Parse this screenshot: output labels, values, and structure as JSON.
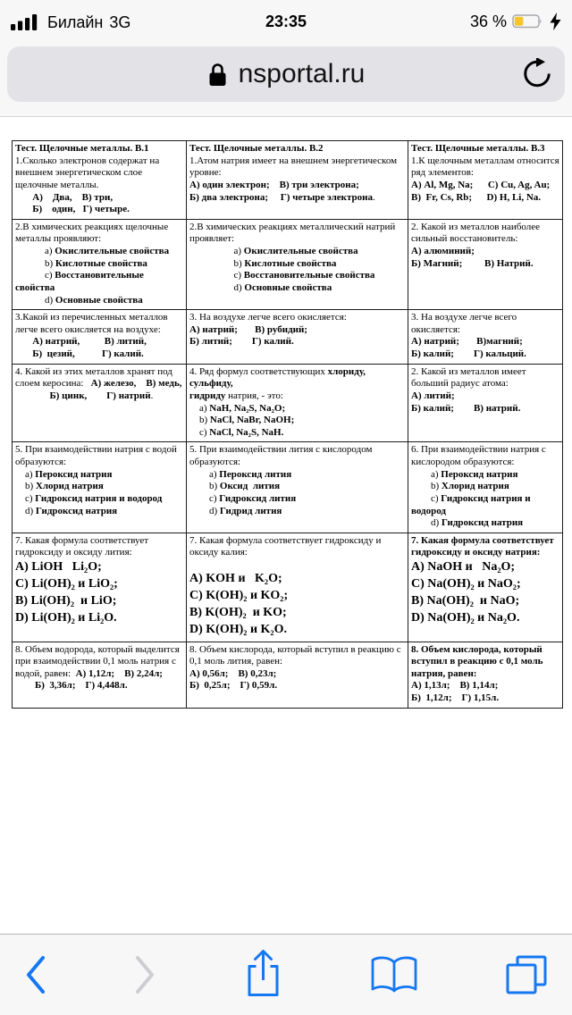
{
  "status_bar": {
    "carrier": "Билайн",
    "network": "3G",
    "time": "23:35",
    "battery_percent": "36 %",
    "charging": true
  },
  "address_bar": {
    "url": "nsportal.ru"
  },
  "toolbar": {
    "buttons": [
      "back",
      "forward",
      "share",
      "bookmarks",
      "tabs"
    ]
  },
  "colors": {
    "accent": "#1577f2",
    "disabled": "#cdcdd1",
    "battery": "#f6c52e",
    "chrome_bg": "#f7f7f8",
    "pill_bg": "#e3e2e7",
    "border": "#b6b6ba"
  },
  "table": {
    "rows": [
      [
        {
          "lines": [
            {
              "segs": [
                {
                  "t": "Тест. Щелочные металлы. В.1",
                  "b": true
                }
              ]
            },
            {
              "segs": [
                {
                  "t": "1.Сколько электронов содержат на внешнем энергетическом слое  щелочные металлы."
                }
              ]
            },
            {
              "segs": [
                {
                  "t": "       А)    Два,    В) три,",
                  "b": true
                }
              ]
            },
            {
              "segs": [
                {
                  "t": "       Б)    один,   Г) четыре.",
                  "b": true
                }
              ]
            }
          ]
        },
        {
          "lines": [
            {
              "segs": [
                {
                  "t": "Тест. Щелочные металлы. В.2",
                  "b": true
                }
              ]
            },
            {
              "segs": [
                {
                  "t": "1.Атом натрия имеет на внешнем энергетическом уровне:"
                }
              ]
            },
            {
              "segs": [
                {
                  "t": "А) один электрон;    В) три электрона;",
                  "b": true
                }
              ]
            },
            {
              "segs": [
                {
                  "t": "Б) два электрона;     Г) четыре электрона",
                  "b": true
                },
                {
                  "t": "."
                }
              ]
            }
          ]
        },
        {
          "lines": [
            {
              "segs": [
                {
                  "t": "Тест. Щелочные металлы. В.3",
                  "b": true
                }
              ]
            },
            {
              "segs": [
                {
                  "t": "1.К щелочным металлам относится ряд элементов:"
                }
              ]
            },
            {
              "segs": [
                {
                  "t": "А) Al, Mg, Na;      С) Cu, Ag, Au;",
                  "b": true
                }
              ]
            },
            {
              "segs": [
                {
                  "t": "В)  Fr, Cs, Rb;      D) H, Li, Na.",
                  "b": true
                }
              ]
            }
          ]
        }
      ],
      [
        {
          "lines": [
            {
              "segs": [
                {
                  "t": "2.В химических реакциях щелочные металлы проявляют:"
                }
              ]
            },
            {
              "segs": [
                {
                  "t": "            a) "
                },
                {
                  "t": "Окислительные свойства",
                  "b": true
                }
              ]
            },
            {
              "segs": [
                {
                  "t": "            b) "
                },
                {
                  "t": "Кислотные свойства",
                  "b": true
                }
              ]
            },
            {
              "segs": [
                {
                  "t": "            c) "
                },
                {
                  "t": "Восстановительные свойства",
                  "b": true
                }
              ]
            },
            {
              "segs": [
                {
                  "t": "            d) "
                },
                {
                  "t": "Основные свойства",
                  "b": true
                }
              ]
            }
          ]
        },
        {
          "lines": [
            {
              "segs": [
                {
                  "t": "2.В химических реакциях металлический натрий проявляет:"
                }
              ]
            },
            {
              "segs": [
                {
                  "t": "                  a) "
                },
                {
                  "t": "Окислительные свойства",
                  "b": true
                }
              ]
            },
            {
              "segs": [
                {
                  "t": "                  b) "
                },
                {
                  "t": "Кислотные свойства",
                  "b": true
                }
              ]
            },
            {
              "segs": [
                {
                  "t": "                  c) "
                },
                {
                  "t": "Восстановительные свойства",
                  "b": true
                }
              ]
            },
            {
              "segs": [
                {
                  "t": "                  d) "
                },
                {
                  "t": "Основные свойства",
                  "b": true
                }
              ]
            }
          ]
        },
        {
          "lines": [
            {
              "segs": [
                {
                  "t": "2. Какой из металлов наиболее сильный восстановитель:"
                }
              ]
            },
            {
              "segs": [
                {
                  "t": "А) алюминий;",
                  "b": true
                }
              ]
            },
            {
              "segs": [
                {
                  "t": "Б) Магний;         В) Натрий.",
                  "b": true
                }
              ]
            }
          ]
        }
      ],
      [
        {
          "lines": [
            {
              "segs": [
                {
                  "t": "3.Какой из перечисленных металлов легче всего окисляется на воздухе:"
                }
              ]
            },
            {
              "segs": [
                {
                  "t": "       А) натрий,          В) литий,",
                  "b": true
                }
              ]
            },
            {
              "segs": [
                {
                  "t": "       Б)  цезий,           Г) калий.",
                  "b": true
                }
              ]
            }
          ]
        },
        {
          "lines": [
            {
              "segs": [
                {
                  "t": "3. На воздухе легче всего окисляется:"
                }
              ]
            },
            {
              "segs": [
                {
                  "t": "А) натрий;       В) рубидий;",
                  "b": true
                }
              ]
            },
            {
              "segs": [
                {
                  "t": "Б) литий;        Г) калий.",
                  "b": true
                }
              ]
            }
          ]
        },
        {
          "lines": [
            {
              "segs": [
                {
                  "t": "3. На воздухе легче всего окисляется:"
                }
              ]
            },
            {
              "segs": [
                {
                  "t": "А) натрий;       В)магний;",
                  "b": true
                }
              ]
            },
            {
              "segs": [
                {
                  "t": "Б) калий;        Г) кальций.",
                  "b": true
                }
              ]
            }
          ]
        }
      ],
      [
        {
          "lines": [
            {
              "segs": [
                {
                  "t": "4. Какой из этих металлов хранят под слоем керосина:   "
                },
                {
                  "t": "А) железо,    В) медь,",
                  "b": true
                }
              ]
            },
            {
              "segs": [
                {
                  "t": "              "
                },
                {
                  "t": "Б) цинк,        Г) натрий",
                  "b": true
                },
                {
                  "t": "."
                }
              ]
            }
          ]
        },
        {
          "lines": [
            {
              "segs": [
                {
                  "t": "4. Ряд формул соответствующих "
                },
                {
                  "t": "хлориду, сульфиду,",
                  "b": true
                }
              ]
            },
            {
              "segs": [
                {
                  "t": "гидриду",
                  "b": true
                },
                {
                  "t": " натрия, - это:"
                }
              ]
            },
            {
              "segs": [
                {
                  "t": "    a) "
                },
                {
                  "t": "NaH, Na₂S, Na₂O;",
                  "b": true
                }
              ]
            },
            {
              "segs": [
                {
                  "t": "    b) "
                },
                {
                  "t": "NaCl, NaBr, NaOH;",
                  "b": true
                }
              ]
            },
            {
              "segs": [
                {
                  "t": "    c) "
                },
                {
                  "t": "NaCl, Na₂S, NaH.",
                  "b": true
                }
              ]
            }
          ]
        },
        {
          "lines": [
            {
              "segs": [
                {
                  "t": "2. Какой из металлов имеет больший радиус атома:"
                }
              ]
            },
            {
              "segs": [
                {
                  "t": "А) литий;",
                  "b": true
                }
              ]
            },
            {
              "segs": [
                {
                  "t": "Б) калий;        В) натрий.",
                  "b": true
                }
              ]
            }
          ]
        }
      ],
      [
        {
          "lines": [
            {
              "segs": [
                {
                  "t": "5. При взаимодействии натрия с водой образуются:"
                }
              ]
            },
            {
              "segs": [
                {
                  "t": "    a) "
                },
                {
                  "t": "Пероксид натрия",
                  "b": true
                }
              ]
            },
            {
              "segs": [
                {
                  "t": "    b) "
                },
                {
                  "t": "Хлорид натрия",
                  "b": true
                }
              ]
            },
            {
              "segs": [
                {
                  "t": "    c) "
                },
                {
                  "t": "Гидроксид натрия и водород",
                  "b": true
                }
              ]
            },
            {
              "segs": [
                {
                  "t": "    d) "
                },
                {
                  "t": "Гидроксид натрия",
                  "b": true
                }
              ]
            }
          ]
        },
        {
          "lines": [
            {
              "segs": [
                {
                  "t": "5. При взаимодействии лития с кислородом образуются:"
                }
              ]
            },
            {
              "segs": [
                {
                  "t": "        a) "
                },
                {
                  "t": "Пероксид лития",
                  "b": true
                }
              ]
            },
            {
              "segs": [
                {
                  "t": "        b) "
                },
                {
                  "t": "Оксид  лития",
                  "b": true
                }
              ]
            },
            {
              "segs": [
                {
                  "t": "        c) "
                },
                {
                  "t": "Гидроксид лития",
                  "b": true
                }
              ]
            },
            {
              "segs": [
                {
                  "t": "        d) "
                },
                {
                  "t": "Гидрид лития",
                  "b": true
                }
              ]
            }
          ]
        },
        {
          "lines": [
            {
              "segs": [
                {
                  "t": "6. При взаимодействии натрия с кислородом образуются:"
                }
              ]
            },
            {
              "segs": [
                {
                  "t": "        a) "
                },
                {
                  "t": "Пероксид натрия",
                  "b": true
                }
              ]
            },
            {
              "segs": [
                {
                  "t": "        b) "
                },
                {
                  "t": "Хлорид натрия",
                  "b": true
                }
              ]
            },
            {
              "segs": [
                {
                  "t": "        c) "
                },
                {
                  "t": "Гидроксид натрия и водород",
                  "b": true
                }
              ]
            },
            {
              "segs": [
                {
                  "t": "        d) "
                },
                {
                  "t": "Гидроксид натрия",
                  "b": true
                }
              ]
            }
          ]
        }
      ],
      [
        {
          "lines": [
            {
              "segs": [
                {
                  "t": "7. Какая формула соответствует гидроксиду и оксиду лития:"
                }
              ]
            },
            {
              "big": true,
              "segs": [
                {
                  "t": "A) LiOH   Li₂O;",
                  "b": true
                }
              ]
            },
            {
              "big": true,
              "segs": [
                {
                  "t": "C) Li(OH)₂ и LiO₂;",
                  "b": true
                }
              ]
            },
            {
              "big": true,
              "segs": [
                {
                  "t": "B) Li(OH)₂  и LiO;",
                  "b": true
                }
              ]
            },
            {
              "big": true,
              "segs": [
                {
                  "t": "D) Li(OH)₂ и Li₂O.",
                  "b": true
                }
              ]
            }
          ]
        },
        {
          "lines": [
            {
              "segs": [
                {
                  "t": "7. Какая формула соответствует гидроксиду и оксиду калия:"
                }
              ]
            },
            {
              "segs": [
                {
                  "t": ""
                }
              ]
            },
            {
              "big": true,
              "segs": [
                {
                  "t": "A) KOH и   K₂O;",
                  "b": true
                }
              ]
            },
            {
              "big": true,
              "segs": [
                {
                  "t": "C) K(OH)₂ и KO₂;",
                  "b": true
                }
              ]
            },
            {
              "big": true,
              "segs": [
                {
                  "t": "B) K(OH)₂  и KO;",
                  "b": true
                }
              ]
            },
            {
              "big": true,
              "segs": [
                {
                  "t": "D) K(OH)₂ и K₂O.",
                  "b": true
                }
              ]
            }
          ]
        },
        {
          "lines": [
            {
              "segs": [
                {
                  "t": "7. Какая формула соответствует гидроксиду и оксиду натрия:",
                  "b": true
                }
              ]
            },
            {
              "big": true,
              "segs": [
                {
                  "t": "A) NaOH и   Na₂O;",
                  "b": true
                }
              ]
            },
            {
              "big": true,
              "segs": [
                {
                  "t": "C) Na(OH)₂ и NaO₂;",
                  "b": true
                }
              ]
            },
            {
              "big": true,
              "segs": [
                {
                  "t": "B) Na(OH)₂  и NaO;",
                  "b": true
                }
              ]
            },
            {
              "big": true,
              "segs": [
                {
                  "t": "D) Na(OH)₂ и Na₂O.",
                  "b": true
                }
              ]
            }
          ]
        }
      ],
      [
        {
          "lines": [
            {
              "segs": [
                {
                  "t": "8. Объем водорода, который выделится при взаимодействии 0,1 моль натрия с водой, равен:  "
                },
                {
                  "t": "А) 1,12л;    В) 2,24л;",
                  "b": true
                }
              ]
            },
            {
              "segs": [
                {
                  "t": "        "
                },
                {
                  "t": "Б)  3,36л;    Г) 4,448л.",
                  "b": true
                }
              ]
            }
          ]
        },
        {
          "lines": [
            {
              "segs": [
                {
                  "t": "8. Объем кислорода, который вступил в реакцию с 0,1 моль лития, равен:"
                }
              ]
            },
            {
              "segs": [
                {
                  "t": "А) 0,56л;    В) 0,23л;",
                  "b": true
                }
              ]
            },
            {
              "segs": [
                {
                  "t": "Б)  0,25л;    Г) 0,59л.",
                  "b": true
                }
              ]
            }
          ]
        },
        {
          "lines": [
            {
              "segs": [
                {
                  "t": "8. Объем кислорода, который вступил в реакцию с 0,1 моль натрия, равен:",
                  "b": true
                }
              ]
            },
            {
              "segs": [
                {
                  "t": "А) 1,13л;    В) 1,14л;",
                  "b": true
                }
              ]
            },
            {
              "segs": [
                {
                  "t": "Б)  1,12л;    Г) 1,15л.",
                  "b": true
                }
              ]
            }
          ]
        }
      ]
    ]
  }
}
